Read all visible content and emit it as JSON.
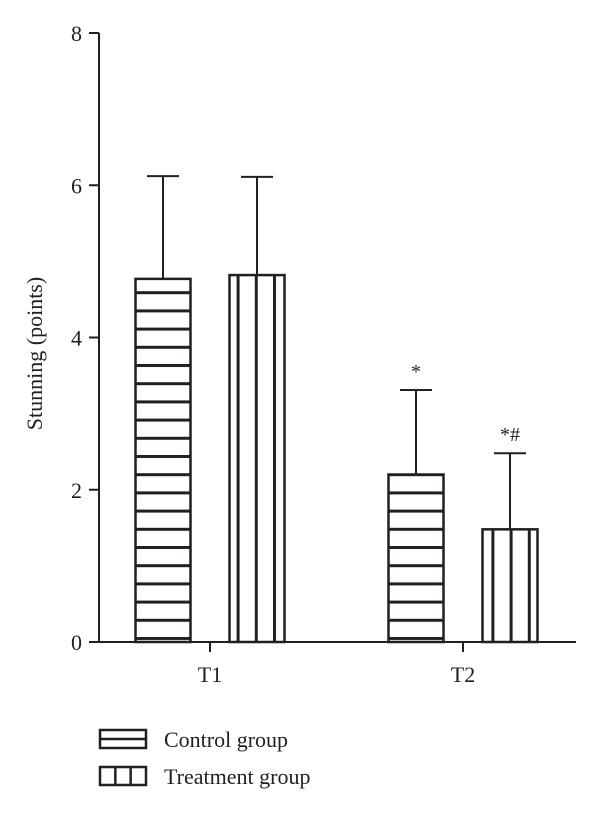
{
  "chart_data": {
    "type": "bar",
    "title": "",
    "xlabel": "",
    "ylabel": "Stunning (points)",
    "ylim": [
      0,
      8
    ],
    "yticks": [
      0,
      2,
      4,
      6,
      8
    ],
    "categories": [
      "T1",
      "T2"
    ],
    "grid": false,
    "legend_position": "bottom-left",
    "series": [
      {
        "name": "Control group",
        "pattern": "horizontal-stripes",
        "values": [
          4.77,
          2.2
        ],
        "errors": [
          1.35,
          1.11
        ],
        "annotations": [
          "",
          "*"
        ]
      },
      {
        "name": "Treatment group",
        "pattern": "vertical-stripes",
        "values": [
          4.82,
          1.48
        ],
        "errors": [
          1.29,
          1.0
        ],
        "annotations": [
          "",
          "*#"
        ]
      }
    ],
    "colors": {
      "stroke": "#231f20",
      "fill": "#ffffff"
    }
  }
}
